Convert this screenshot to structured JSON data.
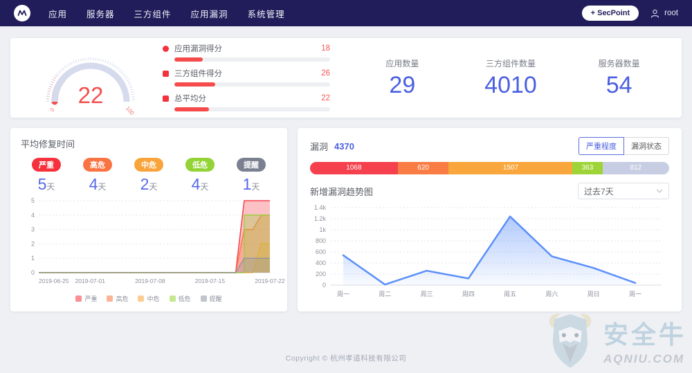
{
  "navbar": {
    "menu": [
      {
        "label": "应用"
      },
      {
        "label": "服务器"
      },
      {
        "label": "三方组件"
      },
      {
        "label": "应用漏洞"
      },
      {
        "label": "系统管理"
      }
    ],
    "secpoint_button": "+ SecPoint",
    "user": "root"
  },
  "overview": {
    "gauge": {
      "value": "22",
      "min": "0",
      "max": "100",
      "color": "#f24f4f",
      "track_color": "#d6daed"
    },
    "scores": [
      {
        "label": "应用漏洞得分",
        "value": "18"
      },
      {
        "label": "三方组件得分",
        "value": "26"
      },
      {
        "label": "总平均分",
        "value": "22"
      }
    ],
    "stats": [
      {
        "label": "应用数量",
        "value": "29"
      },
      {
        "label": "三方组件数量",
        "value": "4010"
      },
      {
        "label": "服务器数量",
        "value": "54"
      }
    ]
  },
  "repair_panel": {
    "title": "平均修复时间",
    "unit": "天",
    "items": [
      {
        "label": "严重",
        "days": "5",
        "color": "#f5313d"
      },
      {
        "label": "高危",
        "days": "4",
        "color": "#f97442"
      },
      {
        "label": "中危",
        "days": "2",
        "color": "#f9a43b"
      },
      {
        "label": "低危",
        "days": "4",
        "color": "#93d335"
      },
      {
        "label": "提醒",
        "days": "1",
        "color": "#7a8090"
      }
    ],
    "chart_data": {
      "type": "area",
      "x_tick_labels": [
        "2019-06-25",
        "2019-07-01",
        "2019-07-08",
        "2019-07-15",
        "2019-07-22"
      ],
      "x_tick_days": [
        0,
        6,
        13,
        20,
        27
      ],
      "x_range_days": 27,
      "ylim": [
        0,
        5
      ],
      "y_ticks": [
        "0",
        "1",
        "2",
        "3",
        "4",
        "5"
      ],
      "grid": true,
      "legend_position": "bottom",
      "series": [
        {
          "name": "严重",
          "color": "#f5313d",
          "points": [
            [
              0,
              0
            ],
            [
              23,
              0
            ],
            [
              24,
              5
            ],
            [
              27,
              5
            ]
          ]
        },
        {
          "name": "高危",
          "color": "#f97442",
          "points": [
            [
              0,
              0
            ],
            [
              23,
              0
            ],
            [
              24,
              3
            ],
            [
              25,
              3
            ],
            [
              26,
              4
            ],
            [
              27,
              4
            ]
          ]
        },
        {
          "name": "中危",
          "color": "#f9a43b",
          "points": [
            [
              0,
              0
            ],
            [
              25,
              0
            ],
            [
              26,
              2
            ],
            [
              27,
              2
            ]
          ]
        },
        {
          "name": "低危",
          "color": "#93d335",
          "points": [
            [
              0,
              0
            ],
            [
              24,
              0
            ],
            [
              24,
              4
            ],
            [
              27,
              4
            ]
          ]
        },
        {
          "name": "提醒",
          "color": "#8d93a3",
          "points": [
            [
              0,
              0
            ],
            [
              23,
              0
            ],
            [
              24,
              1
            ],
            [
              27,
              1
            ]
          ]
        }
      ]
    }
  },
  "vuln_panel": {
    "title": "漏洞",
    "total": "4370",
    "toggle_buttons": [
      {
        "label": "严重程度",
        "active": true
      },
      {
        "label": "漏洞状态",
        "active": false
      }
    ],
    "bar_segments": [
      {
        "value": 1068,
        "color": "#f5414d"
      },
      {
        "value": 620,
        "color": "#f97c45"
      },
      {
        "value": 1507,
        "color": "#f9a63c"
      },
      {
        "value": 363,
        "color": "#9ed437"
      },
      {
        "value": 812,
        "color": "#c7cee3"
      }
    ],
    "trend_title": "新增漏洞趋势图",
    "range_select": "过去7天",
    "chart_data": {
      "type": "area",
      "categories": [
        "周一",
        "周二",
        "周三",
        "周四",
        "周五",
        "周六",
        "周日",
        "周一"
      ],
      "values": [
        540,
        10,
        260,
        120,
        1240,
        520,
        310,
        40
      ],
      "ylim": [
        0,
        1400
      ],
      "y_tick_labels": [
        "0",
        "200",
        "400",
        "600",
        "800",
        "1k",
        "1.2k",
        "1.4k"
      ],
      "grid": true,
      "line_color": "#5b8ff9"
    }
  },
  "footer": {
    "copyright": "Copyright © 杭州孝道科技有限公司"
  },
  "watermark": {
    "brand": "安全牛",
    "domain": "AQNIU.COM"
  }
}
